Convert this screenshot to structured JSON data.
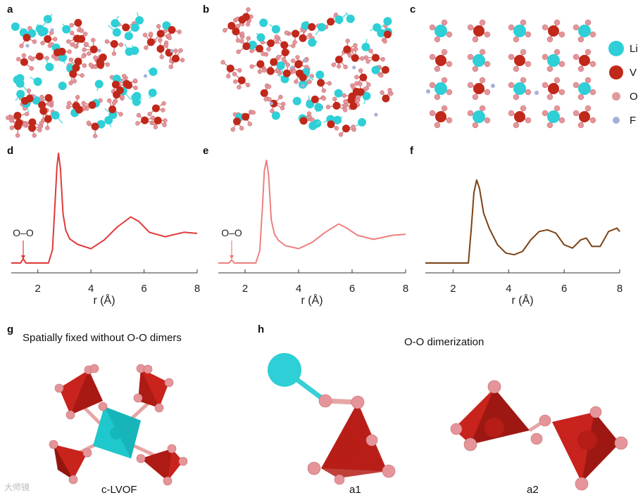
{
  "panels": {
    "a": "a",
    "b": "b",
    "c": "c",
    "d": "d",
    "e": "e",
    "f": "f",
    "g": "g",
    "h": "h"
  },
  "legend": [
    {
      "label": "Li",
      "color": "#2ecfd6"
    },
    {
      "label": "V",
      "color": "#c0281a"
    },
    {
      "label": "O",
      "color": "#e19a9a"
    },
    {
      "label": "F",
      "color": "#a7afd8"
    }
  ],
  "colors": {
    "d_line": "#e03a3a",
    "e_line": "#ee7f7f",
    "f_line": "#7a4216",
    "tetra": "#c8231c",
    "octa": "#1ec8cc"
  },
  "g": {
    "title": "Spatially fixed without O-O dimers",
    "caption": "c-LVOF"
  },
  "h": {
    "title": "O-O dimerization",
    "caption_a1": "a1",
    "caption_a2": "a2"
  },
  "watermark": "大师镜",
  "chart_data": [
    {
      "panel": "d",
      "type": "line",
      "xlabel": "r (Å)",
      "ylabel": "",
      "xlim": [
        1,
        8
      ],
      "xticks": [
        "2",
        "4",
        "6",
        "8"
      ],
      "annotation": "O–O",
      "annotation_x": 1.45,
      "series": [
        {
          "x": [
            1.0,
            1.35,
            1.45,
            1.55,
            2.4,
            2.55,
            2.65,
            2.72,
            2.78,
            2.85,
            2.95,
            3.05,
            3.2,
            3.5,
            4.0,
            4.5,
            5.0,
            5.5,
            5.8,
            6.2,
            6.8,
            7.5,
            8.0
          ],
          "y": [
            0.0,
            0.0,
            0.04,
            0.0,
            0.0,
            0.12,
            0.55,
            0.88,
            1.0,
            0.86,
            0.45,
            0.3,
            0.22,
            0.17,
            0.13,
            0.21,
            0.33,
            0.42,
            0.38,
            0.28,
            0.24,
            0.28,
            0.27
          ]
        }
      ]
    },
    {
      "panel": "e",
      "type": "line",
      "xlabel": "r (Å)",
      "ylabel": "",
      "xlim": [
        1,
        8
      ],
      "xticks": [
        "2",
        "4",
        "6",
        "8"
      ],
      "annotation": "O–O",
      "annotation_x": 1.5,
      "series": [
        {
          "x": [
            1.0,
            1.4,
            1.5,
            1.6,
            2.4,
            2.55,
            2.65,
            2.72,
            2.8,
            2.88,
            2.98,
            3.1,
            3.25,
            3.5,
            4.0,
            4.5,
            5.0,
            5.5,
            5.8,
            6.2,
            6.8,
            7.5,
            8.0
          ],
          "y": [
            0.0,
            0.0,
            0.03,
            0.0,
            0.0,
            0.12,
            0.55,
            0.9,
            1.0,
            0.86,
            0.42,
            0.28,
            0.22,
            0.17,
            0.14,
            0.2,
            0.3,
            0.38,
            0.34,
            0.27,
            0.23,
            0.27,
            0.28
          ]
        }
      ]
    },
    {
      "panel": "f",
      "type": "line",
      "xlabel": "r (Å)",
      "ylabel": "",
      "xlim": [
        1,
        8
      ],
      "xticks": [
        "2",
        "4",
        "6",
        "8"
      ],
      "series": [
        {
          "x": [
            1.0,
            2.55,
            2.65,
            2.75,
            2.85,
            2.95,
            3.1,
            3.3,
            3.6,
            3.9,
            4.2,
            4.5,
            4.8,
            5.1,
            5.4,
            5.7,
            6.0,
            6.3,
            6.6,
            6.8,
            7.0,
            7.3,
            7.6,
            7.9,
            8.0
          ],
          "y": [
            0.0,
            0.0,
            0.4,
            0.85,
            1.0,
            0.9,
            0.6,
            0.42,
            0.22,
            0.12,
            0.1,
            0.14,
            0.28,
            0.38,
            0.4,
            0.36,
            0.22,
            0.18,
            0.28,
            0.3,
            0.2,
            0.2,
            0.38,
            0.42,
            0.38
          ]
        }
      ]
    }
  ]
}
